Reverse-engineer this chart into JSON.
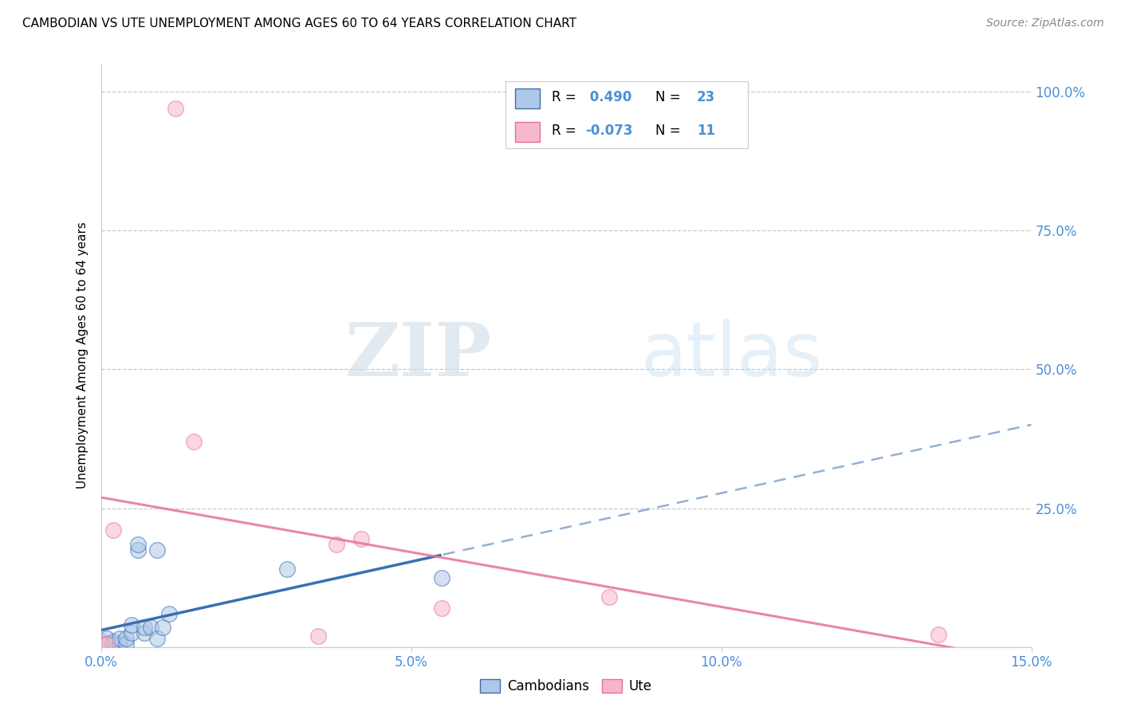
{
  "title": "CAMBODIAN VS UTE UNEMPLOYMENT AMONG AGES 60 TO 64 YEARS CORRELATION CHART",
  "source": "Source: ZipAtlas.com",
  "ylabel": "Unemployment Among Ages 60 to 64 years",
  "xlim": [
    0.0,
    0.15
  ],
  "ylim": [
    0.0,
    1.05
  ],
  "xticks": [
    0.0,
    0.05,
    0.1,
    0.15
  ],
  "yticks": [
    0.25,
    0.5,
    0.75,
    1.0
  ],
  "xticklabels": [
    "0.0%",
    "5.0%",
    "10.0%",
    "15.0%"
  ],
  "yticklabels_right": [
    "25.0%",
    "50.0%",
    "75.0%",
    "100.0%"
  ],
  "cambodian_x": [
    0.0,
    0.0,
    0.001,
    0.001,
    0.002,
    0.002,
    0.003,
    0.003,
    0.004,
    0.004,
    0.005,
    0.005,
    0.006,
    0.006,
    0.007,
    0.007,
    0.008,
    0.009,
    0.009,
    0.01,
    0.011,
    0.03,
    0.055
  ],
  "cambodian_y": [
    0.005,
    0.01,
    0.005,
    0.015,
    0.005,
    0.01,
    0.005,
    0.015,
    0.005,
    0.015,
    0.025,
    0.04,
    0.175,
    0.185,
    0.025,
    0.035,
    0.035,
    0.175,
    0.015,
    0.035,
    0.06,
    0.14,
    0.125
  ],
  "ute_x": [
    0.0,
    0.001,
    0.002,
    0.012,
    0.015,
    0.035,
    0.038,
    0.042,
    0.055,
    0.082,
    0.135
  ],
  "ute_y": [
    0.005,
    0.005,
    0.21,
    0.97,
    0.37,
    0.02,
    0.185,
    0.195,
    0.07,
    0.09,
    0.022
  ],
  "cambodian_R": 0.49,
  "cambodian_N": 23,
  "ute_R": -0.073,
  "ute_N": 11,
  "cambodian_color": "#adc8e8",
  "cambodian_line_color": "#3a6fb0",
  "ute_color": "#f5b8c8",
  "ute_line_color": "#e8709a",
  "watermark_zip": "ZIP",
  "watermark_atlas": "atlas",
  "background_color": "#ffffff",
  "grid_color": "#c8c8c8",
  "tick_color": "#4a90d9",
  "title_fontsize": 11,
  "label_fontsize": 11
}
